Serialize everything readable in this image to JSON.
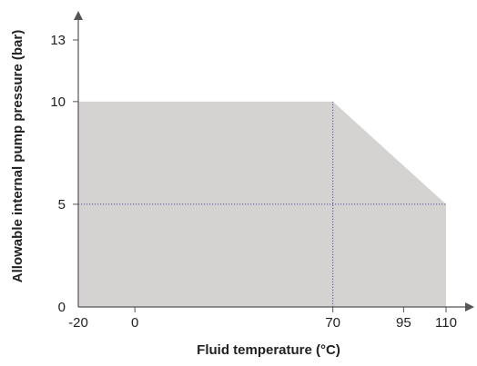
{
  "chart_data": {
    "type": "area",
    "title": "",
    "xlabel": "Fluid temperature (°C)",
    "ylabel": "Allowable internal pump pressure (bar)",
    "x_ticks": [
      {
        "value": -20,
        "label": "-20"
      },
      {
        "value": 0,
        "label": "0"
      },
      {
        "value": 70,
        "label": "70"
      },
      {
        "value": 95,
        "label": "95"
      },
      {
        "value": 110,
        "label": "110"
      }
    ],
    "y_ticks": [
      {
        "value": 0,
        "label": "0"
      },
      {
        "value": 5,
        "label": "5"
      },
      {
        "value": 10,
        "label": "10"
      },
      {
        "value": 13,
        "label": "13"
      }
    ],
    "series": [
      {
        "x": [
          -20,
          70,
          110,
          110,
          -20
        ],
        "y": [
          10,
          10,
          5,
          0,
          0
        ]
      }
    ],
    "reference_lines": [
      {
        "orientation": "vertical",
        "x": 70,
        "y_range": [
          0,
          10
        ]
      },
      {
        "orientation": "horizontal",
        "y": 5,
        "x_range": [
          -20,
          110
        ]
      }
    ],
    "xlim": [
      -20,
      110
    ],
    "ylim": [
      0,
      13
    ],
    "grid": false,
    "legend": "none",
    "colors": {
      "fill": "#d4d3d2",
      "axis": "#555555",
      "reference_line": "#5a4fa0",
      "text": "#222222"
    }
  }
}
